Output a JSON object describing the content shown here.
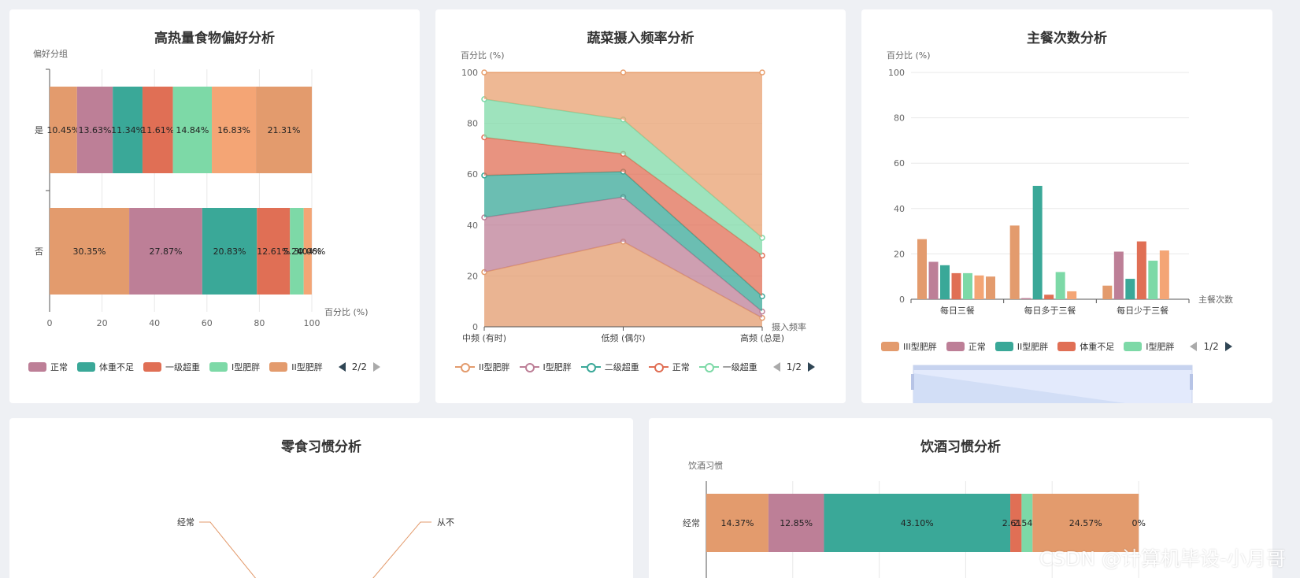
{
  "colors": {
    "orange": "#e39b6d",
    "mauve": "#bd7f97",
    "teal": "#3aa898",
    "red": "#e06f55",
    "mint": "#7dd9a7",
    "peach": "#f4a575",
    "axis": "#555555"
  },
  "cards": {
    "c1_title": "高热量食物偏好分析",
    "c2_title": "蔬菜摄入频率分析",
    "c3_title": "主餐次数分析",
    "c4_title": "零食习惯分析",
    "c5_title": "饮酒习惯分析"
  },
  "legends": {
    "c1": {
      "items": [
        "正常",
        "体重不足",
        "一级超重",
        "I型肥胖",
        "II型肥胖"
      ],
      "page": "2/2"
    },
    "c2": {
      "items": [
        "II型肥胖",
        "I型肥胖",
        "二级超重",
        "正常",
        "一级超重"
      ],
      "page": "1/2"
    },
    "c3": {
      "items": [
        "III型肥胖",
        "正常",
        "II型肥胖",
        "体重不足",
        "I型肥胖"
      ],
      "page": "1/2"
    }
  },
  "chart_data": [
    {
      "type": "bar",
      "orientation": "horizontal-stacked",
      "title": "高热量食物偏好分析",
      "ylabel": "偏好分组",
      "xlabel": "百分比 (%)",
      "xlim": [
        0,
        100
      ],
      "xticks": [
        0,
        20,
        40,
        60,
        80,
        100
      ],
      "categories": [
        "是",
        "否"
      ],
      "segment_colors": [
        "#e39b6d",
        "#bd7f97",
        "#3aa898",
        "#e06f55",
        "#7dd9a7",
        "#f4a575",
        "#e39b6d"
      ],
      "rows": [
        {
          "category": "是",
          "values": [
            10.45,
            13.63,
            11.34,
            11.61,
            14.84,
            16.83,
            21.31
          ],
          "labels": [
            "10.45%",
            "13.63%",
            "11.34%",
            "11.61%",
            "14.84%",
            "16.83%",
            "21.31%"
          ]
        },
        {
          "category": "否",
          "values": [
            30.35,
            27.87,
            20.83,
            12.61,
            5.24,
            3.04,
            0.06
          ],
          "labels": [
            "30.35%",
            "27.87%",
            "20.83%",
            "12.61%",
            "5.24%",
            "3.04%",
            "0.06%"
          ]
        }
      ]
    },
    {
      "type": "area",
      "stacked": true,
      "title": "蔬菜摄入频率分析",
      "ylabel": "百分比 (%)",
      "xlabel": "摄入频率",
      "ylim": [
        0,
        100
      ],
      "yticks": [
        0,
        20,
        40,
        60,
        80,
        100
      ],
      "x": [
        "中频 (有时)",
        "低频 (偶尔)",
        "高频 (总是)"
      ],
      "series": [
        {
          "name": "II型肥胖",
          "values": [
            21.5,
            33.5,
            3.5
          ],
          "color": "#e39b6d"
        },
        {
          "name": "I型肥胖",
          "values": [
            21.5,
            17.5,
            2.5
          ],
          "color": "#bd7f97"
        },
        {
          "name": "二级超重",
          "values": [
            16.5,
            10.0,
            6.0
          ],
          "color": "#3aa898"
        },
        {
          "name": "正常",
          "values": [
            15.0,
            7.0,
            16.0
          ],
          "color": "#e06f55"
        },
        {
          "name": "一级超重",
          "values": [
            15.0,
            13.5,
            7.0
          ],
          "color": "#7dd9a7"
        },
        {
          "name": "",
          "values": [
            10.5,
            18.5,
            65.0
          ],
          "color": "#e8a070"
        }
      ]
    },
    {
      "type": "bar",
      "title": "主餐次数分析",
      "ylabel": "百分比 (%)",
      "xlabel": "主餐次数",
      "ylim": [
        0,
        100
      ],
      "yticks": [
        0,
        20,
        40,
        60,
        80,
        100
      ],
      "categories": [
        "每日三餐",
        "每日多于三餐",
        "每日少于三餐"
      ],
      "series": [
        {
          "values": [
            26.5,
            32.5,
            6.0
          ],
          "color": "#e39b6d"
        },
        {
          "values": [
            16.5,
            0.5,
            21.0
          ],
          "color": "#bd7f97"
        },
        {
          "values": [
            15.0,
            50.0,
            9.0
          ],
          "color": "#3aa898"
        },
        {
          "values": [
            11.5,
            2.0,
            25.5
          ],
          "color": "#e06f55"
        },
        {
          "values": [
            11.5,
            12.0,
            17.0
          ],
          "color": "#7dd9a7"
        },
        {
          "values": [
            10.5,
            3.5,
            21.5
          ],
          "color": "#f4a575"
        },
        {
          "values": [
            10.0,
            0,
            0
          ],
          "color": "#e39b6d"
        }
      ]
    },
    {
      "type": "pie",
      "title": "零食习惯分析",
      "labels": [
        "经常",
        "从不"
      ]
    },
    {
      "type": "bar",
      "orientation": "horizontal-stacked",
      "title": "饮酒习惯分析",
      "ylabel": "饮酒习惯",
      "categories": [
        "经常"
      ],
      "segment_colors": [
        "#e39b6d",
        "#bd7f97",
        "#3aa898",
        "#e06f55",
        "#7dd9a7",
        "#e39b6d",
        "#f4a575"
      ],
      "rows": [
        {
          "category": "经常",
          "values": [
            14.37,
            12.85,
            43.1,
            2.61,
            2.54,
            24.57,
            0
          ],
          "labels": [
            "14.37%",
            "12.85%",
            "43.10%",
            "2.61%",
            "2.54%",
            "24.57%",
            "0%"
          ]
        }
      ]
    }
  ],
  "watermark": "CSDN @计算机毕设-小月哥"
}
